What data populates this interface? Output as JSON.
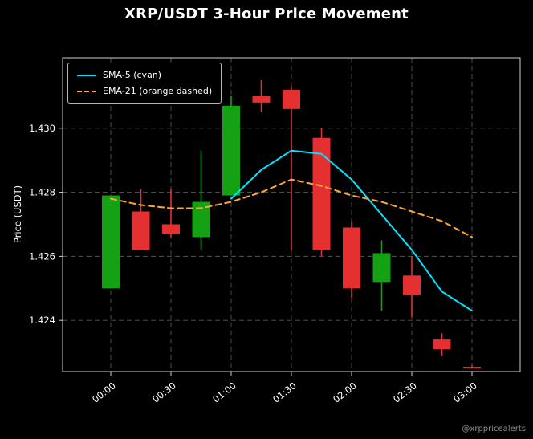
{
  "header": {
    "title": "XRP/USDT 3-Hour Price Movement"
  },
  "axes": {
    "ylabel": "Price (USDT)",
    "x_tick_labels": [
      "00:00",
      "00:30",
      "01:00",
      "01:30",
      "02:00",
      "02:30",
      "03:00"
    ],
    "y_tick_labels": [
      "1.424",
      "1.426",
      "1.428",
      "1.430"
    ]
  },
  "legend": {
    "sma_label": "SMA-5 (cyan)",
    "ema_label": "EMA-21 (orange dashed)"
  },
  "footer": {
    "watermark": "@xrppricealerts"
  },
  "chart_data": {
    "type": "candlestick",
    "title": "XRP/USDT 3-Hour Price Movement",
    "ylabel": "Price (USDT)",
    "xlabel": "",
    "grid": true,
    "legend_position": "upper left",
    "xlim_minutes": [
      -24,
      204
    ],
    "ylim": [
      1.4224,
      1.4322
    ],
    "x_tick_minutes": [
      0,
      30,
      60,
      90,
      120,
      150,
      180
    ],
    "x_tick_labels": [
      "00:00",
      "00:30",
      "01:00",
      "01:30",
      "02:00",
      "02:30",
      "03:00"
    ],
    "y_tick_values": [
      1.424,
      1.426,
      1.428,
      1.43
    ],
    "candles": [
      {
        "time": "00:00",
        "minute": 0,
        "open": 1.425,
        "high": 1.4279,
        "low": 1.425,
        "close": 1.4279
      },
      {
        "time": "00:15",
        "minute": 15,
        "open": 1.4274,
        "high": 1.4281,
        "low": 1.4262,
        "close": 1.4262
      },
      {
        "time": "00:30",
        "minute": 30,
        "open": 1.427,
        "high": 1.4281,
        "low": 1.4266,
        "close": 1.4267
      },
      {
        "time": "00:45",
        "minute": 45,
        "open": 1.4266,
        "high": 1.4293,
        "low": 1.4262,
        "close": 1.4277
      },
      {
        "time": "01:00",
        "minute": 60,
        "open": 1.4279,
        "high": 1.431,
        "low": 1.4279,
        "close": 1.4307
      },
      {
        "time": "01:15",
        "minute": 75,
        "open": 1.431,
        "high": 1.4315,
        "low": 1.4305,
        "close": 1.4308
      },
      {
        "time": "01:30",
        "minute": 90,
        "open": 1.4312,
        "high": 1.4313,
        "low": 1.4262,
        "close": 1.4306
      },
      {
        "time": "01:45",
        "minute": 105,
        "open": 1.4297,
        "high": 1.43,
        "low": 1.426,
        "close": 1.4262
      },
      {
        "time": "02:00",
        "minute": 120,
        "open": 1.4269,
        "high": 1.4271,
        "low": 1.4247,
        "close": 1.425
      },
      {
        "time": "02:15",
        "minute": 135,
        "open": 1.4252,
        "high": 1.4265,
        "low": 1.4243,
        "close": 1.4261
      },
      {
        "time": "02:30",
        "minute": 150,
        "open": 1.4254,
        "high": 1.426,
        "low": 1.4241,
        "close": 1.4248
      },
      {
        "time": "02:45",
        "minute": 165,
        "open": 1.4234,
        "high": 1.4236,
        "low": 1.4229,
        "close": 1.4231
      },
      {
        "time": "03:00",
        "minute": 180,
        "open": 1.42255,
        "high": 1.4226,
        "low": 1.4225,
        "close": 1.4225
      }
    ],
    "series": [
      {
        "name": "SMA-5 (cyan)",
        "data_name": "sma-line",
        "style": "solid",
        "color": "#00e5ff",
        "x_minutes": [
          60,
          75,
          90,
          105,
          120,
          135,
          150,
          165,
          180
        ],
        "values": [
          1.4278,
          1.4287,
          1.4293,
          1.4292,
          1.4284,
          1.4273,
          1.4262,
          1.4249,
          1.4243
        ]
      },
      {
        "name": "EMA-21 (orange dashed)",
        "data_name": "ema-line",
        "style": "dashed",
        "color": "#ffa733",
        "x_minutes": [
          0,
          15,
          30,
          45,
          60,
          75,
          90,
          105,
          120,
          135,
          150,
          165,
          180
        ],
        "values": [
          1.4278,
          1.4276,
          1.4275,
          1.4275,
          1.4277,
          1.428,
          1.4284,
          1.4282,
          1.4279,
          1.4277,
          1.4274,
          1.4271,
          1.4266
        ]
      }
    ],
    "colors": {
      "up": "#14a214",
      "down": "#e43030",
      "sma": "#00e5ff",
      "ema": "#ffa733",
      "grid": "#565656",
      "spine": "#cfcfcf",
      "background": "#000000",
      "text": "#ffffff",
      "watermark": "#8f8f8f"
    }
  }
}
